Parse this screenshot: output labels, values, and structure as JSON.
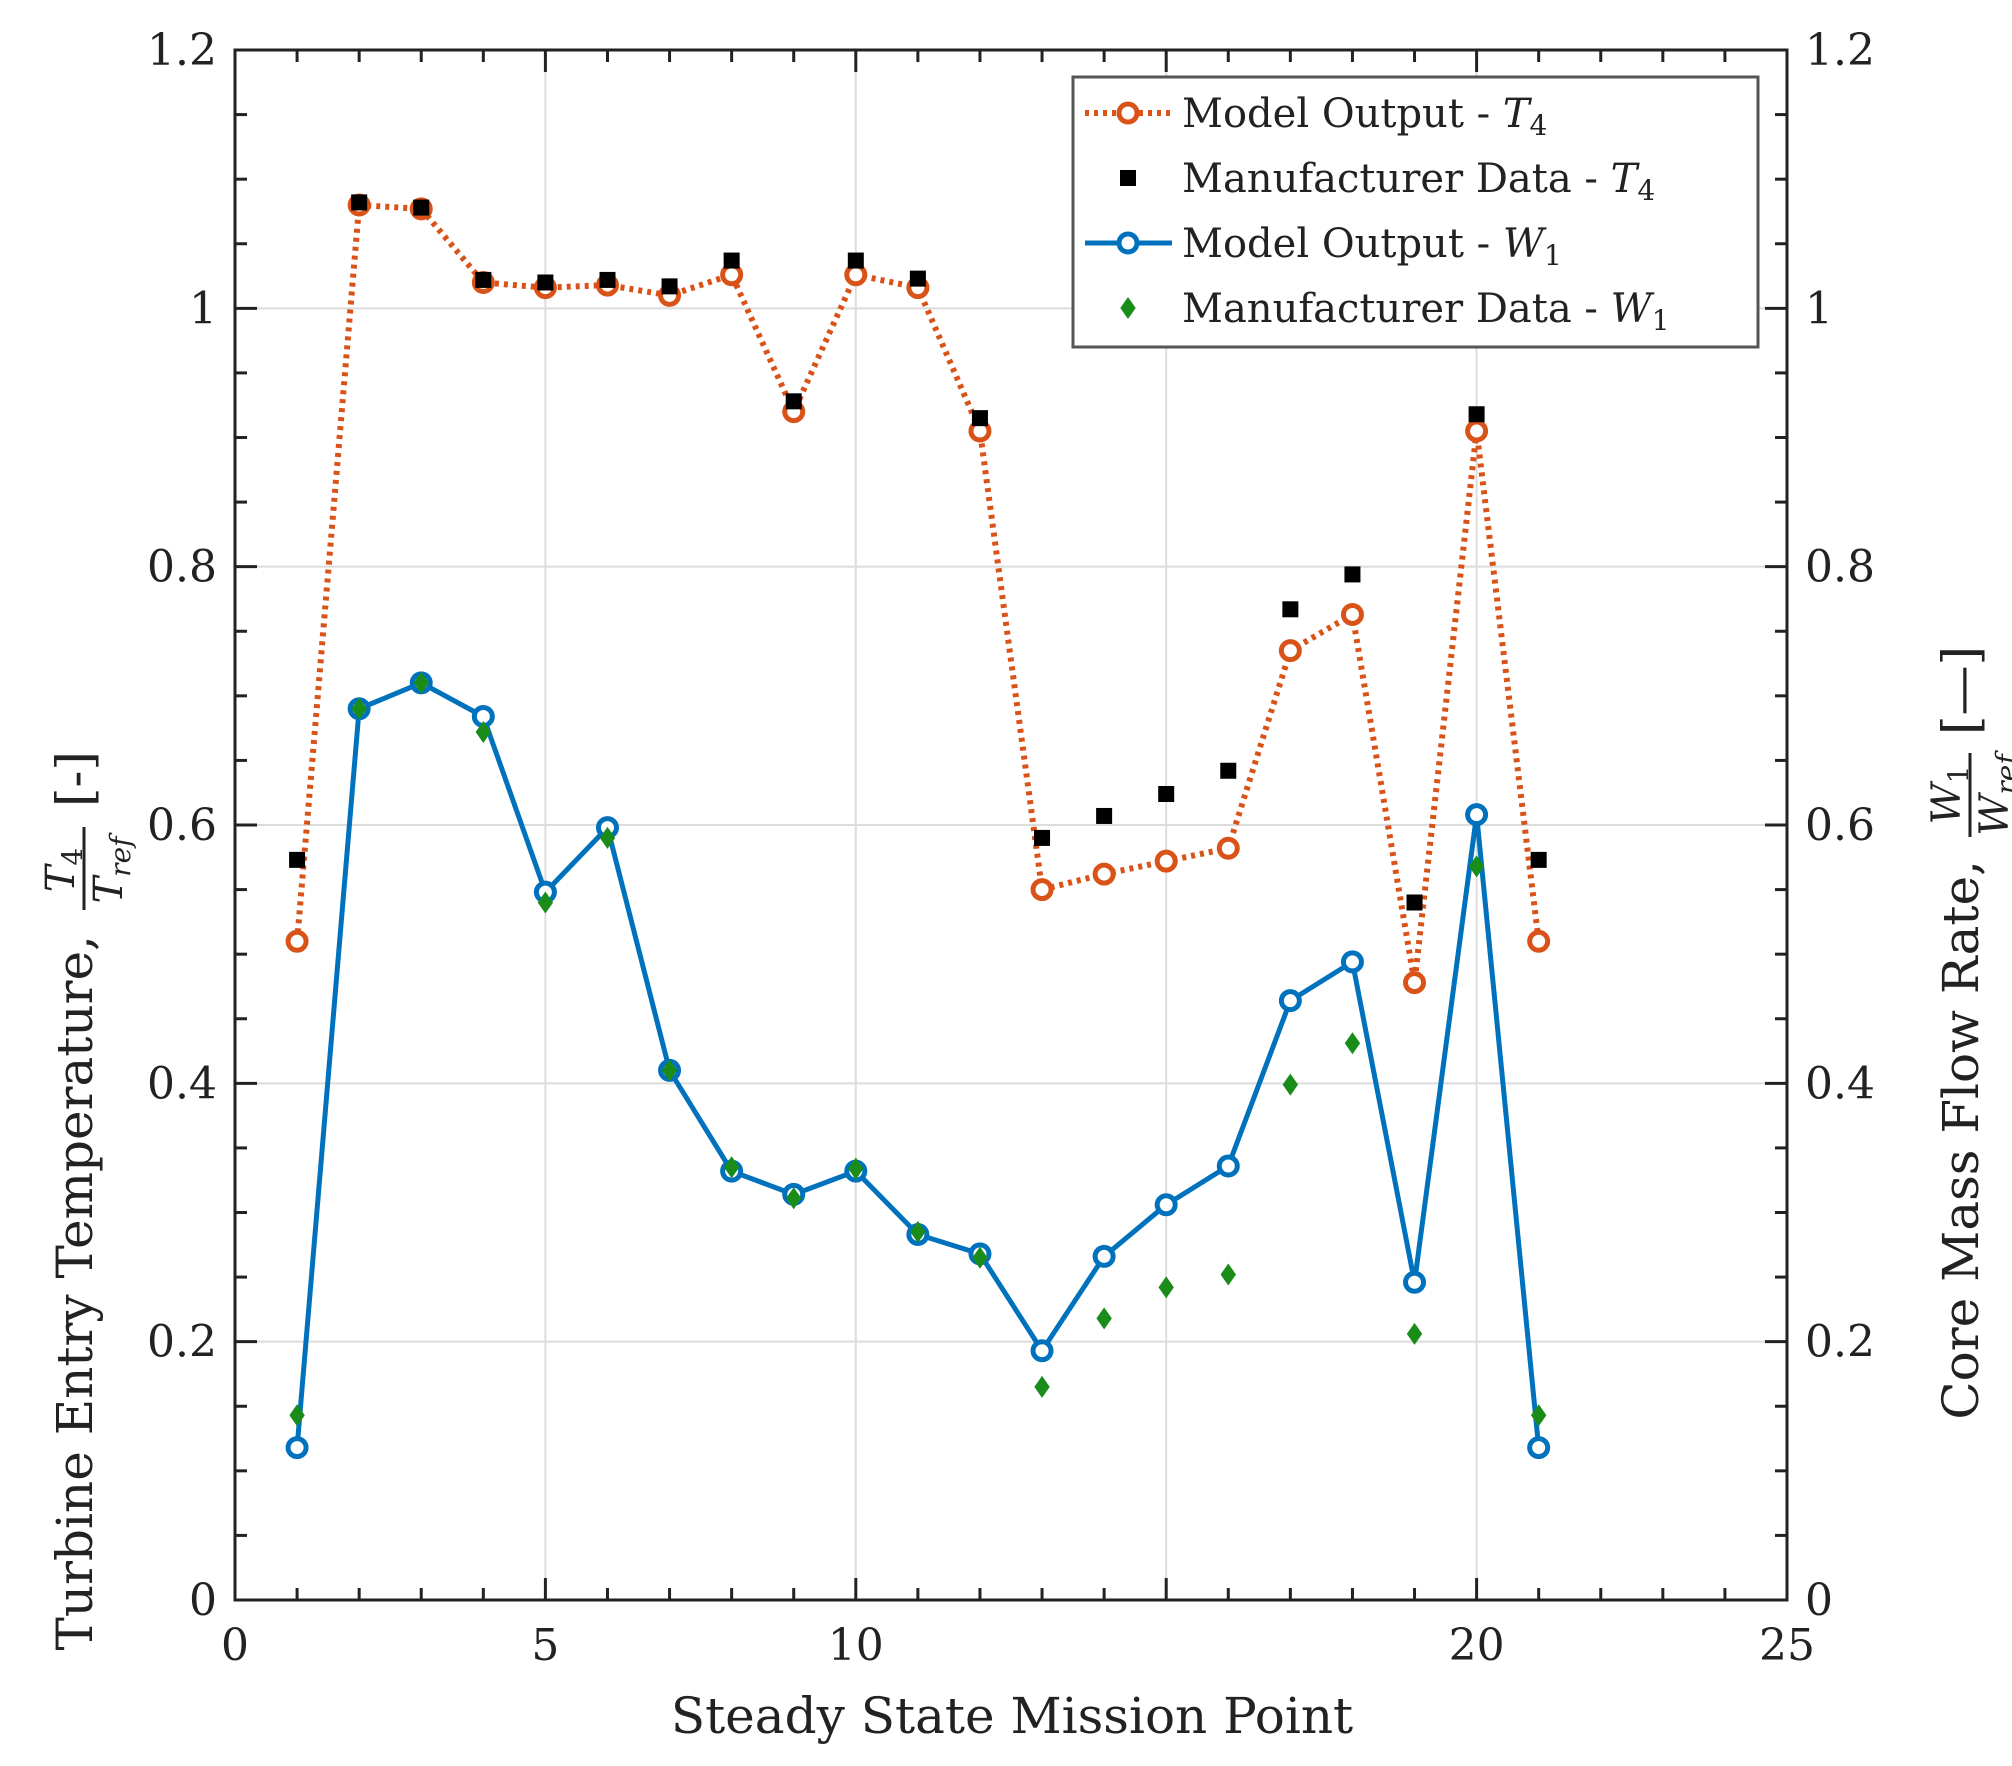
{
  "chart_data": {
    "type": "line",
    "xlabel": "Steady State Mission Point",
    "ylabel_left": {
      "text": "Turbine Entry Temperature,",
      "frac_num": "T",
      "frac_num_sub": "4",
      "frac_den": "T",
      "frac_den_sub": "ref",
      "unit": "[-]"
    },
    "ylabel_right": {
      "text": "Core Mass Flow Rate,",
      "frac_num": "W",
      "frac_num_sub": "1",
      "frac_den": "W",
      "frac_den_sub": "ref",
      "unit": "[—]"
    },
    "xlim": [
      0,
      25
    ],
    "ylim": [
      0,
      1.2
    ],
    "xticks": [
      0,
      5,
      10,
      15,
      20,
      25
    ],
    "xtick_labels": [
      "0",
      "5",
      "10",
      "",
      "20",
      "25"
    ],
    "yticks": [
      0,
      0.2,
      0.4,
      0.6,
      0.8,
      1,
      1.2
    ],
    "ytick_labels": [
      "0",
      "0.2",
      "0.4",
      "0.6",
      "0.8",
      "1",
      "1.2"
    ],
    "grid": true,
    "legend_position": "top-right",
    "series": [
      {
        "name": "Model Output - ",
        "symbol": "T",
        "sub": "4",
        "style": "dotted-line-circle",
        "color": "#D95319",
        "x": [
          1,
          2,
          3,
          4,
          5,
          6,
          7,
          8,
          9,
          10,
          11,
          12,
          13,
          14,
          15,
          16,
          17,
          18,
          19,
          20,
          21
        ],
        "values": [
          0.51,
          1.08,
          1.077,
          1.02,
          1.016,
          1.018,
          1.01,
          1.026,
          0.92,
          1.026,
          1.016,
          0.905,
          0.55,
          0.562,
          0.572,
          0.582,
          0.735,
          0.763,
          0.478,
          0.905,
          0.51
        ]
      },
      {
        "name": "Manufacturer Data - ",
        "symbol": "T",
        "sub": "4",
        "style": "square-marker",
        "color": "#000000",
        "x": [
          1,
          2,
          3,
          4,
          5,
          6,
          7,
          8,
          9,
          10,
          11,
          12,
          13,
          14,
          15,
          16,
          17,
          18,
          19,
          20,
          21
        ],
        "values": [
          0.573,
          1.082,
          1.078,
          1.022,
          1.02,
          1.022,
          1.017,
          1.037,
          0.928,
          1.037,
          1.023,
          0.915,
          0.59,
          0.607,
          0.624,
          0.642,
          0.767,
          0.794,
          0.54,
          0.918,
          0.573
        ]
      },
      {
        "name": "Model Output - ",
        "symbol": "W",
        "sub": "1",
        "style": "solid-line-circle",
        "color": "#0072BD",
        "x": [
          1,
          2,
          3,
          4,
          5,
          6,
          7,
          8,
          9,
          10,
          11,
          12,
          13,
          14,
          15,
          16,
          17,
          18,
          19,
          20,
          21
        ],
        "values": [
          0.118,
          0.69,
          0.71,
          0.684,
          0.548,
          0.598,
          0.41,
          0.332,
          0.314,
          0.332,
          0.283,
          0.268,
          0.193,
          0.266,
          0.306,
          0.336,
          0.464,
          0.494,
          0.246,
          0.608,
          0.118
        ]
      },
      {
        "name": "Manufacturer Data - ",
        "symbol": "W",
        "sub": "1",
        "style": "diamond-marker",
        "color": "#1A8C1A",
        "x": [
          1,
          2,
          3,
          4,
          5,
          6,
          7,
          8,
          9,
          10,
          11,
          12,
          13,
          14,
          15,
          16,
          17,
          18,
          19,
          20,
          21
        ],
        "values": [
          0.143,
          0.69,
          0.71,
          0.672,
          0.54,
          0.59,
          0.41,
          0.335,
          0.311,
          0.334,
          0.285,
          0.265,
          0.165,
          0.218,
          0.242,
          0.252,
          0.399,
          0.431,
          0.206,
          0.568,
          0.143
        ]
      }
    ]
  }
}
